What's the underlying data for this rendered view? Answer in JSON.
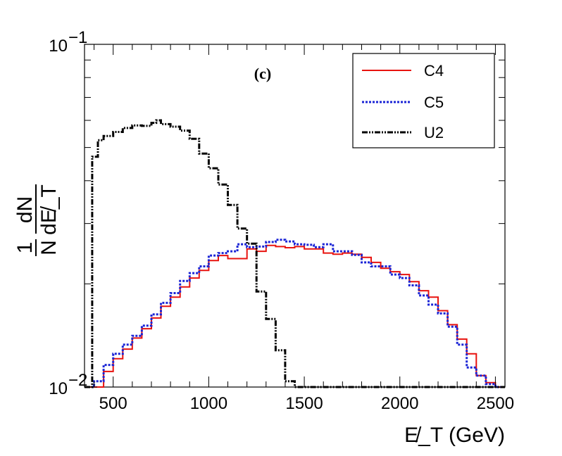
{
  "chart_data": {
    "type": "line",
    "title": "",
    "annotation": "(c)",
    "xlabel": "E̸_T (GeV)",
    "ylabel_num": "dN",
    "ylabel_den": "dE̸_T",
    "ylabel_prefix_num": "1",
    "ylabel_prefix_den": "N",
    "xlim": [
      350,
      2550
    ],
    "ylim": [
      0.01,
      0.1
    ],
    "yscale": "log",
    "bin_width": 50,
    "x_ticks": [
      {
        "value": 500,
        "label": "500"
      },
      {
        "value": 1000,
        "label": "1000"
      },
      {
        "value": 1500,
        "label": "1500"
      },
      {
        "value": 2000,
        "label": "2000"
      },
      {
        "value": 2500,
        "label": "2500"
      }
    ],
    "y_ticks": [
      {
        "value": 0.01,
        "base": "10",
        "exp": "−2"
      },
      {
        "value": 0.1,
        "base": "10",
        "exp": "−1"
      }
    ],
    "legend_position": "top-right",
    "series": [
      {
        "name": "C4",
        "color": "#e8130f",
        "style": "solid",
        "bin_edges": [
          350,
          400,
          450,
          500,
          550,
          600,
          650,
          700,
          750,
          800,
          850,
          900,
          950,
          1000,
          1050,
          1100,
          1150,
          1200,
          1250,
          1300,
          1350,
          1400,
          1450,
          1500,
          1550,
          1600,
          1650,
          1700,
          1750,
          1800,
          1850,
          1900,
          1950,
          2000,
          2050,
          2100,
          2150,
          2200,
          2250,
          2300,
          2350,
          2400,
          2450,
          2500,
          2550
        ],
        "values": [
          0.01,
          0.01,
          0.0111,
          0.0121,
          0.0129,
          0.0139,
          0.0148,
          0.0159,
          0.0172,
          0.0183,
          0.0196,
          0.0208,
          0.0219,
          0.0234,
          0.0242,
          0.0237,
          0.0237,
          0.0253,
          0.0249,
          0.0259,
          0.0257,
          0.0255,
          0.0257,
          0.0253,
          0.0253,
          0.0246,
          0.0244,
          0.0246,
          0.0244,
          0.0239,
          0.0231,
          0.0222,
          0.0217,
          0.0213,
          0.0203,
          0.0191,
          0.0183,
          0.0167,
          0.0152,
          0.0138,
          0.0125,
          0.0108,
          0.0103,
          0.01
        ]
      },
      {
        "name": "C5",
        "color": "#1b25d6",
        "style": "dotted",
        "bin_edges": [
          350,
          400,
          450,
          500,
          550,
          600,
          650,
          700,
          750,
          800,
          850,
          900,
          950,
          1000,
          1050,
          1100,
          1150,
          1200,
          1250,
          1300,
          1350,
          1400,
          1450,
          1500,
          1550,
          1600,
          1650,
          1700,
          1750,
          1800,
          1850,
          1900,
          1950,
          2000,
          2050,
          2100,
          2150,
          2200,
          2250,
          2300,
          2350,
          2400,
          2450,
          2500,
          2550
        ],
        "values": [
          0.01,
          0.0104,
          0.0116,
          0.0125,
          0.0133,
          0.0141,
          0.0151,
          0.0163,
          0.0176,
          0.0188,
          0.0204,
          0.0215,
          0.0225,
          0.0242,
          0.0246,
          0.0249,
          0.0261,
          0.0256,
          0.0257,
          0.0265,
          0.0269,
          0.0266,
          0.0261,
          0.026,
          0.0256,
          0.0261,
          0.0249,
          0.0249,
          0.0243,
          0.0231,
          0.0225,
          0.0225,
          0.0213,
          0.0208,
          0.0198,
          0.0185,
          0.0174,
          0.0164,
          0.015,
          0.0133,
          0.0114,
          0.0108,
          0.0102,
          0.01
        ]
      },
      {
        "name": "U2",
        "color": "#000000",
        "style": "dashdot",
        "bin_edges": [
          350,
          390,
          420,
          450,
          500,
          550,
          600,
          650,
          700,
          725,
          750,
          800,
          850,
          900,
          950,
          1000,
          1050,
          1100,
          1150,
          1200,
          1250,
          1300,
          1350,
          1400,
          1450,
          2550
        ],
        "values": [
          0.01,
          0.047,
          0.0525,
          0.054,
          0.0555,
          0.057,
          0.058,
          0.0578,
          0.059,
          0.06,
          0.0585,
          0.0575,
          0.056,
          0.053,
          0.048,
          0.0435,
          0.039,
          0.034,
          0.029,
          0.0262,
          0.019,
          0.0158,
          0.0128,
          0.0104,
          0.01
        ]
      }
    ]
  }
}
